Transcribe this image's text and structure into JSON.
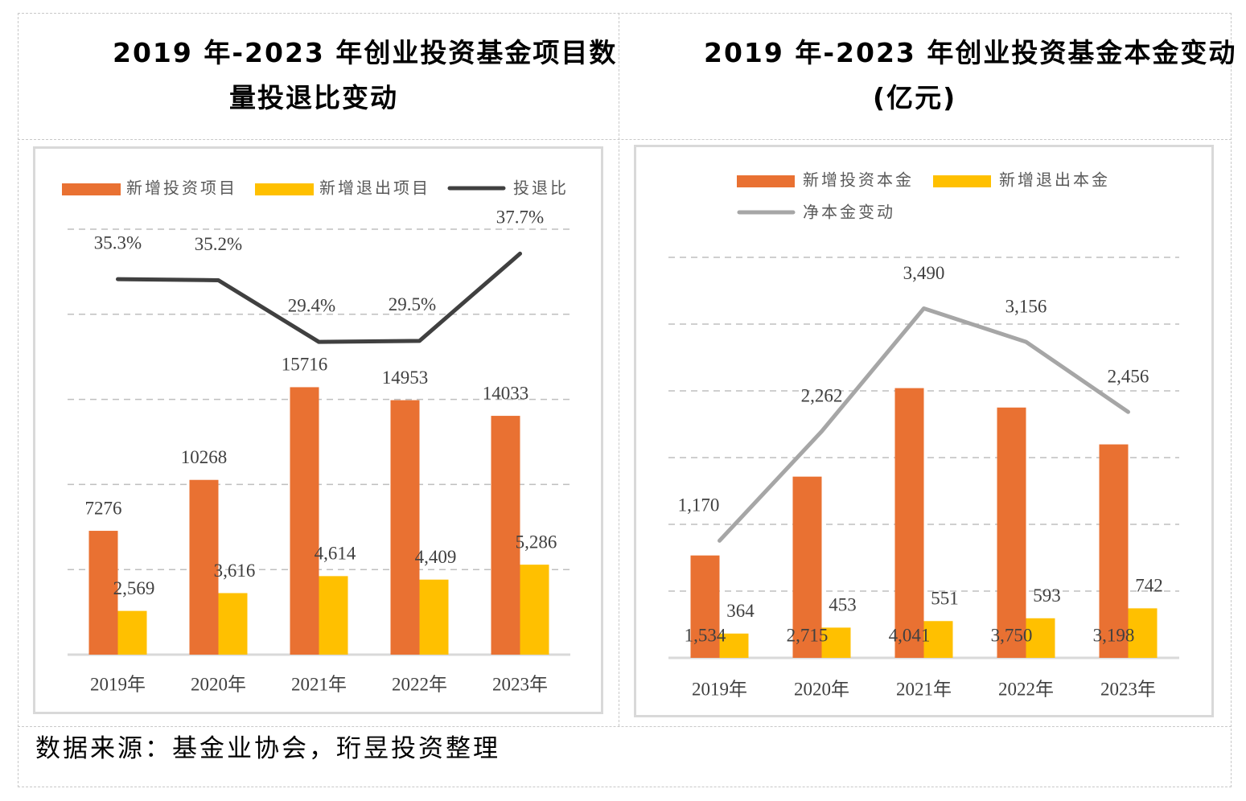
{
  "left_title_line1": "2019 年-2023 年创业投资基金项目数",
  "left_title_line2": "量投退比变动",
  "right_title_line1": "2019 年-2023 年创业投资基金本金变动",
  "right_title_line2": "(亿元)",
  "footer": "数据来源：基金业协会，珩昱投资整理",
  "colors": {
    "orange": "#E97132",
    "yellow": "#FFC000",
    "dark_line": "#404040",
    "gray_line": "#A6A6A6"
  },
  "chart_data": [
    {
      "type": "bar",
      "title": "2019 年-2023 年创业投资基金项目数量投退比变动",
      "categories": [
        "2019年",
        "2020年",
        "2021年",
        "2022年",
        "2023年"
      ],
      "series": [
        {
          "name": "新增投资项目",
          "kind": "bar",
          "axis": "primary",
          "color": "#E97132",
          "values": [
            7276,
            10268,
            15716,
            14953,
            14033
          ],
          "labels": [
            "7276",
            "10268",
            "15716",
            "14953",
            "14033"
          ]
        },
        {
          "name": "新增退出项目",
          "kind": "bar",
          "axis": "primary",
          "color": "#FFC000",
          "values": [
            2569,
            3616,
            4614,
            4409,
            5286
          ],
          "labels": [
            "2,569",
            "3,616",
            "4,614",
            "4,409",
            "5,286"
          ]
        },
        {
          "name": "投退比",
          "kind": "line",
          "axis": "secondary",
          "color": "#404040",
          "values": [
            35.3,
            35.2,
            29.4,
            29.5,
            37.7
          ],
          "labels": [
            "35.3%",
            "35.2%",
            "29.4%",
            "29.5%",
            "37.7%"
          ]
        }
      ],
      "ylim": [
        0,
        25000
      ],
      "y2lim": [
        0,
        40
      ],
      "grid": true,
      "legend": "top"
    },
    {
      "type": "bar",
      "title": "2019 年-2023 年创业投资基金本金变动 (亿元)",
      "categories": [
        "2019年",
        "2020年",
        "2021年",
        "2022年",
        "2023年"
      ],
      "series": [
        {
          "name": "新增投资本金",
          "kind": "bar",
          "axis": "primary",
          "color": "#E97132",
          "values": [
            1534,
            2715,
            4041,
            3750,
            3198
          ],
          "labels": [
            "1,534",
            "2,715",
            "4,041",
            "3,750",
            "3,198"
          ]
        },
        {
          "name": "新增退出本金",
          "kind": "bar",
          "axis": "primary",
          "color": "#FFC000",
          "values": [
            364,
            453,
            551,
            593,
            742
          ],
          "labels": [
            "364",
            "453",
            "551",
            "593",
            "742"
          ]
        },
        {
          "name": "净本金变动",
          "kind": "line",
          "axis": "secondary",
          "color": "#A6A6A6",
          "values": [
            1170,
            2262,
            3490,
            3156,
            2456
          ],
          "labels": [
            "1,170",
            "2,262",
            "3,490",
            "3,156",
            "2,456"
          ]
        }
      ],
      "ylim": [
        0,
        6000
      ],
      "y2lim": [
        0,
        4000
      ],
      "grid": true,
      "legend": "top"
    }
  ]
}
